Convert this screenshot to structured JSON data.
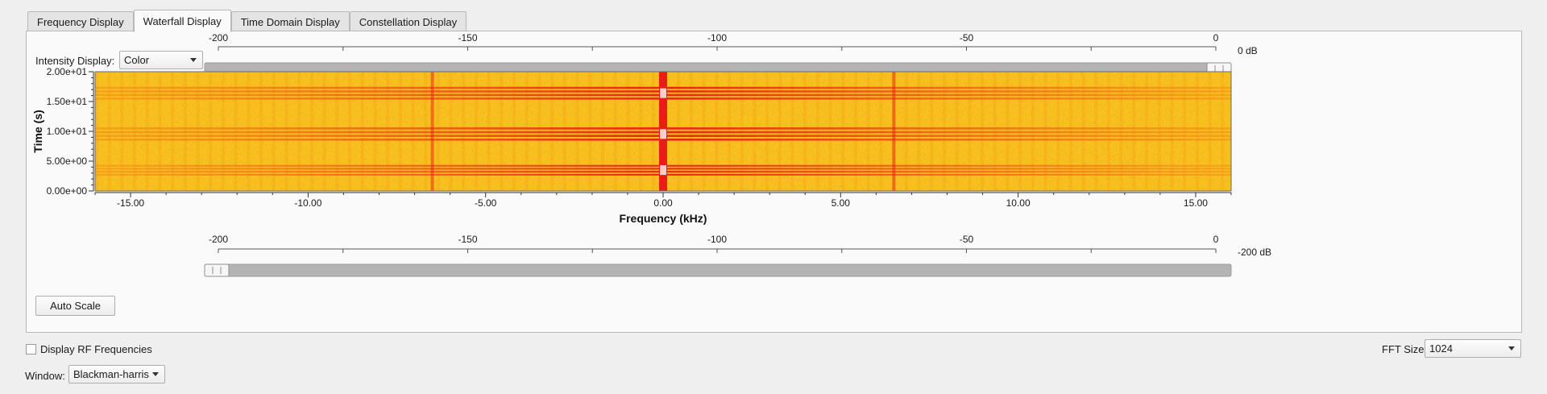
{
  "tabs": [
    {
      "label": "Frequency Display"
    },
    {
      "label": "Waterfall Display"
    },
    {
      "label": "Time Domain Display"
    },
    {
      "label": "Constellation Display"
    }
  ],
  "active_tab": 1,
  "intensity": {
    "label": "Intensity Display:",
    "value": "Color"
  },
  "max_slider": {
    "ticks": [
      "-200",
      "-150",
      "-100",
      "-50",
      "0"
    ],
    "value_label": "0 dB",
    "value": 0
  },
  "min_slider": {
    "ticks": [
      "-200",
      "-150",
      "-100",
      "-50",
      "0"
    ],
    "value_label": "-200 dB",
    "value": -200
  },
  "auto_scale_label": "Auto Scale",
  "rf_checkbox": {
    "label": "Display RF Frequencies",
    "checked": false
  },
  "fft": {
    "label": "FFT Size:",
    "value": "1024"
  },
  "window": {
    "label": "Window:",
    "value": "Blackman-harris"
  },
  "colors": {
    "low": "#f7c21e",
    "mid": "#f28a12",
    "high": "#e81c14",
    "peak": "#ffffff"
  },
  "chart_data": {
    "type": "heatmap",
    "xlabel": "Frequency (kHz)",
    "ylabel": "Time (s)",
    "xlim": [
      -16,
      16
    ],
    "ylim": [
      0,
      20
    ],
    "x_tick_labels": [
      "-15.00",
      "-10.00",
      "-5.00",
      "0.00",
      "5.00",
      "10.00",
      "15.00"
    ],
    "x_tick_values": [
      -15,
      -10,
      -5,
      0,
      5,
      10,
      15
    ],
    "y_tick_labels": [
      "0.00e+00",
      "5.00e+00",
      "1.00e+01",
      "1.50e+01",
      "2.00e+01"
    ],
    "y_tick_values": [
      0,
      5,
      10,
      15,
      20
    ],
    "dc_spike_khz": 0,
    "side_tones_khz": [
      -6.5,
      6.5
    ],
    "strong_time_bands_s": [
      [
        2.5,
        4.5
      ],
      [
        8.3,
        10.8
      ],
      [
        15.2,
        17.6
      ]
    ]
  }
}
